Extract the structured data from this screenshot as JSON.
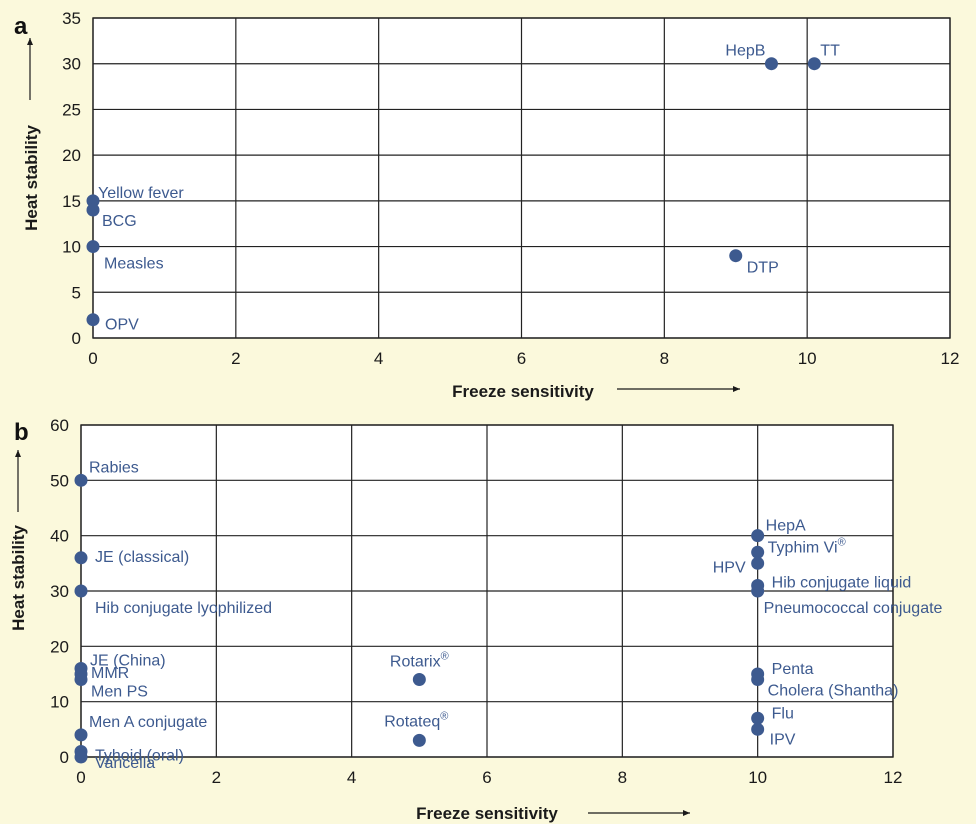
{
  "chart_data": [
    {
      "panel": "a",
      "type": "scatter",
      "xlabel": "Freeze sensitivity",
      "ylabel": "Heat stability",
      "xlim": [
        0,
        12
      ],
      "ylim": [
        0,
        35
      ],
      "xticks": [
        "0",
        "2",
        "4",
        "6",
        "8",
        "10",
        "12"
      ],
      "yticks": [
        "0",
        "5",
        "10",
        "15",
        "20",
        "25",
        "30",
        "35"
      ],
      "grid": true,
      "point_color": "#3d5a8f",
      "points": [
        {
          "label": "HepB",
          "x": 9.5,
          "y": 30
        },
        {
          "label": "TT",
          "x": 10.1,
          "y": 30
        },
        {
          "label": "Yellow fever",
          "x": 0,
          "y": 15
        },
        {
          "label": "BCG",
          "x": 0,
          "y": 14
        },
        {
          "label": "Measles",
          "x": 0,
          "y": 10
        },
        {
          "label": "DTP",
          "x": 9,
          "y": 9
        },
        {
          "label": "OPV",
          "x": 0,
          "y": 2
        }
      ]
    },
    {
      "panel": "b",
      "type": "scatter",
      "xlabel": "Freeze sensitivity",
      "ylabel": "Heat stability",
      "xlim": [
        0,
        12
      ],
      "ylim": [
        0,
        60
      ],
      "xticks": [
        "0",
        "2",
        "4",
        "6",
        "8",
        "10",
        "12"
      ],
      "yticks": [
        "0",
        "10",
        "20",
        "30",
        "40",
        "50",
        "60"
      ],
      "grid": true,
      "point_color": "#3d5a8f",
      "points": [
        {
          "label": "Rabies",
          "x": 0,
          "y": 50
        },
        {
          "label": "JE (classical)",
          "x": 0,
          "y": 36
        },
        {
          "label": "Hib conjugate lyophilized",
          "x": 0,
          "y": 30
        },
        {
          "label": "JE (China)",
          "x": 0,
          "y": 16
        },
        {
          "label": "MMR",
          "x": 0,
          "y": 15
        },
        {
          "label": "Men PS",
          "x": 0,
          "y": 14
        },
        {
          "label": "Men A conjugate",
          "x": 0,
          "y": 4
        },
        {
          "label": "Tyhoid (oral)",
          "x": 0,
          "y": 1
        },
        {
          "label": "Varicella",
          "x": 0,
          "y": 0
        },
        {
          "label": "Rotarix",
          "sup": "®",
          "x": 5,
          "y": 14
        },
        {
          "label": "Rotateq",
          "sup": "®",
          "x": 5,
          "y": 3
        },
        {
          "label": "HepA",
          "x": 10,
          "y": 40
        },
        {
          "label": "Typhim Vi",
          "sup": "®",
          "x": 10,
          "y": 37
        },
        {
          "label": "HPV",
          "x": 10,
          "y": 35
        },
        {
          "label": "Hib conjugate liquid",
          "x": 10,
          "y": 31
        },
        {
          "label": "Pneumococcal conjugate",
          "x": 10,
          "y": 30
        },
        {
          "label": "Penta",
          "x": 10,
          "y": 15
        },
        {
          "label": "Cholera (Shantha)",
          "x": 10,
          "y": 14
        },
        {
          "label": "Flu",
          "x": 10,
          "y": 7
        },
        {
          "label": "IPV",
          "x": 10,
          "y": 5
        }
      ]
    }
  ]
}
